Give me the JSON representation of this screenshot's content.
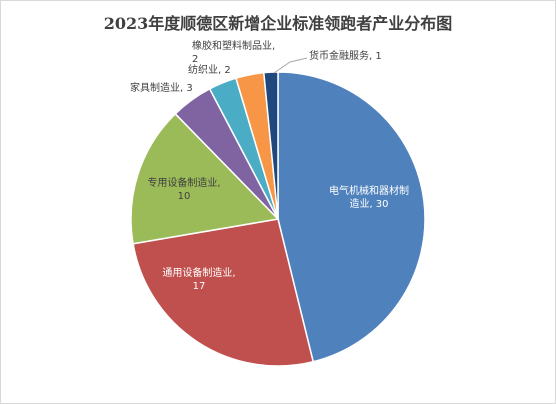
{
  "chart_data": {
    "type": "pie",
    "title": "2023年度顺德区新增企业标准领跑者产业分布图",
    "slices": [
      {
        "category": "电气机械和器材制造业",
        "value": 30,
        "color": "#4f81bd",
        "label_lines": [
          "电气机械和器材制",
          "造业, 30"
        ]
      },
      {
        "category": "通用设备制造业",
        "value": 17,
        "color": "#c0504d",
        "label_lines": [
          "通用设备制造业,",
          "17"
        ]
      },
      {
        "category": "专用设备制造业",
        "value": 10,
        "color": "#9bbb59",
        "label_lines": [
          "专用设备制造业,",
          "10"
        ]
      },
      {
        "category": "家具制造业",
        "value": 3,
        "color": "#8064a2",
        "label_lines": [
          "家具制造业, 3"
        ]
      },
      {
        "category": "纺织业",
        "value": 2,
        "color": "#4bacc6",
        "label_lines": [
          "纺织业, 2"
        ]
      },
      {
        "category": "橡胶和塑料制品业",
        "value": 2,
        "color": "#f79646",
        "label_lines": [
          "橡胶和塑料制品业,",
          "2"
        ]
      },
      {
        "category": "货币金融服务",
        "value": 1,
        "color": "#1f497d",
        "label_lines": [
          "货币金融服务, 1"
        ]
      }
    ],
    "legend": "none"
  }
}
